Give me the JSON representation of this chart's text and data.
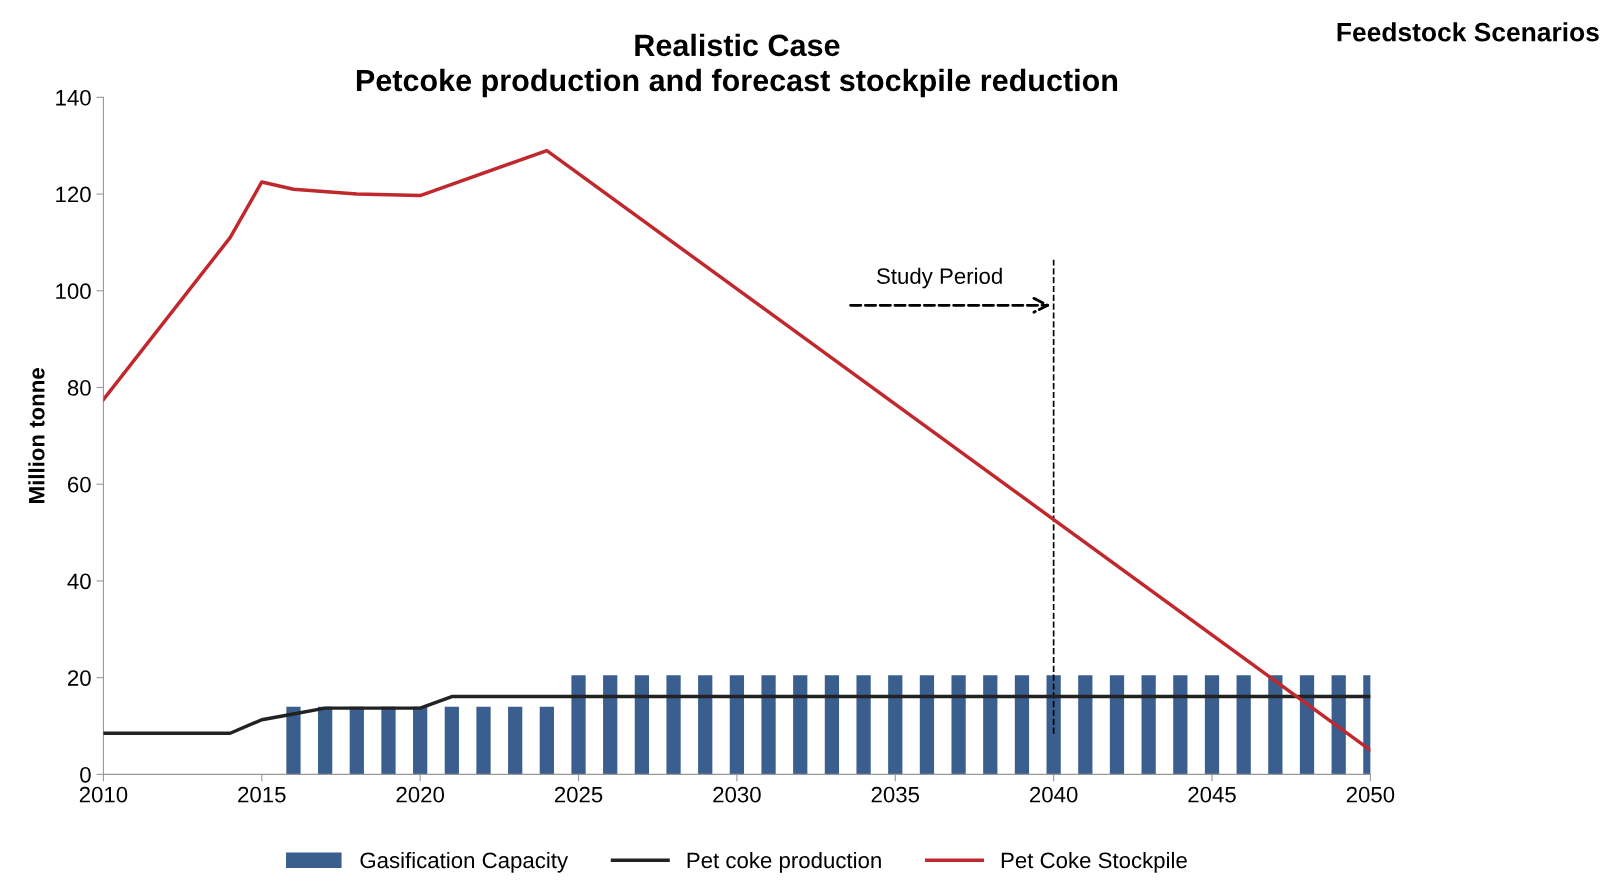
{
  "chart_data": {
    "type": "line",
    "title": "Realistic Case\nPetcoke production and forecast stockpile reduction",
    "ylabel": "Million tonne",
    "series": [
      {
        "name": "Gasification Capacity",
        "type": "bar",
        "color": "#3a5f8e",
        "x": [
          2016,
          2017,
          2018,
          2019,
          2020,
          2021,
          2022,
          2023,
          2024,
          2025,
          2026,
          2027,
          2028,
          2029,
          2030,
          2031,
          2032,
          2033,
          2034,
          2035,
          2036,
          2037,
          2038,
          2039,
          2040,
          2041,
          2042,
          2043,
          2044,
          2045,
          2046,
          2047,
          2048,
          2049,
          2050
        ],
        "values": [
          14,
          14,
          14,
          14,
          14,
          14,
          14,
          14,
          14,
          20.5,
          20.5,
          20.5,
          20.5,
          20.5,
          20.5,
          20.5,
          20.5,
          20.5,
          20.5,
          20.5,
          20.5,
          20.5,
          20.5,
          20.5,
          20.5,
          20.5,
          20.5,
          20.5,
          20.5,
          20.5,
          20.5,
          20.5,
          20.5,
          20.5,
          20.5
        ]
      },
      {
        "name": "Pet coke production",
        "color": "#222222",
        "x": [
          2010,
          2014,
          2015,
          2016,
          2017,
          2020,
          2021,
          2050
        ],
        "values": [
          8.5,
          8.5,
          11.3,
          12.5,
          13.7,
          13.7,
          16.1,
          16.1
        ]
      },
      {
        "name": "Pet Coke Stockpile",
        "color": "#c0282d",
        "x": [
          2010,
          2014,
          2015,
          2016,
          2018,
          2020,
          2024,
          2050
        ],
        "values": [
          77.5,
          111,
          122.5,
          121,
          120,
          119.7,
          129,
          5
        ]
      }
    ],
    "xlim": [
      2010,
      2050
    ],
    "xticks": [
      2010,
      2015,
      2020,
      2025,
      2030,
      2035,
      2040,
      2045,
      2050
    ],
    "ylim": [
      0,
      140
    ],
    "yticks": [
      0,
      20,
      40,
      60,
      80,
      100,
      120,
      140
    ],
    "ref_lines": [
      {
        "axis": "x",
        "value": 2040,
        "color": "#000000",
        "line_style": "dashed"
      }
    ],
    "annotations": [
      {
        "text": "Study Period",
        "x": 2040,
        "y": 97
      },
      "Feedstock Scenarios"
    ],
    "grid": false,
    "legend": "bottom",
    "marker": "none",
    "line_style": "solid"
  }
}
